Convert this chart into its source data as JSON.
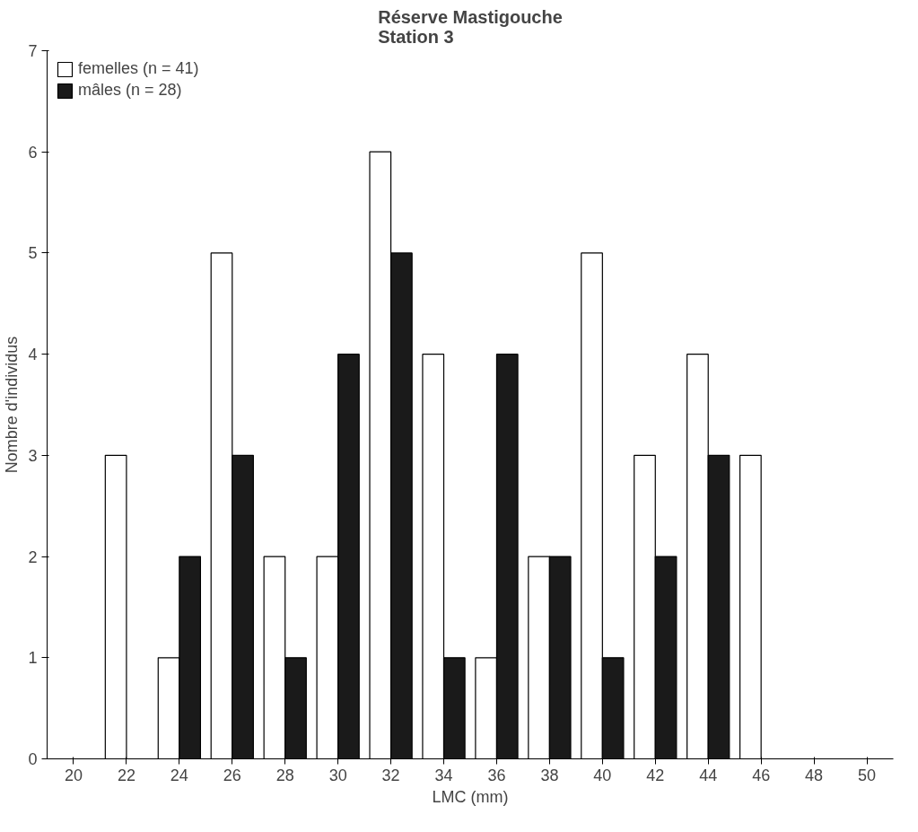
{
  "chart_data": {
    "type": "bar",
    "title": "Réserve Mastigouche\nStation 3",
    "xlabel": "LMC (mm)",
    "ylabel": "Nombre d'individus",
    "categories": [
      "20",
      "22",
      "24",
      "26",
      "28",
      "30",
      "32",
      "34",
      "36",
      "38",
      "40",
      "42",
      "44",
      "46",
      "48",
      "50"
    ],
    "series": [
      {
        "name": "femelles (n = 41)",
        "color": "#ffffff",
        "values": [
          0,
          3,
          1,
          5,
          2,
          2,
          6,
          4,
          1,
          2,
          5,
          3,
          4,
          3,
          0,
          0
        ]
      },
      {
        "name": "mâles (n = 28)",
        "color": "#1a1a1a",
        "values": [
          0,
          0,
          2,
          3,
          1,
          4,
          5,
          1,
          4,
          2,
          1,
          2,
          3,
          0,
          0,
          0
        ]
      }
    ],
    "ylim": [
      0,
      7
    ],
    "yticks": [
      0,
      1,
      2,
      3,
      4,
      5,
      6,
      7
    ],
    "grid": false,
    "legend": "top left"
  }
}
